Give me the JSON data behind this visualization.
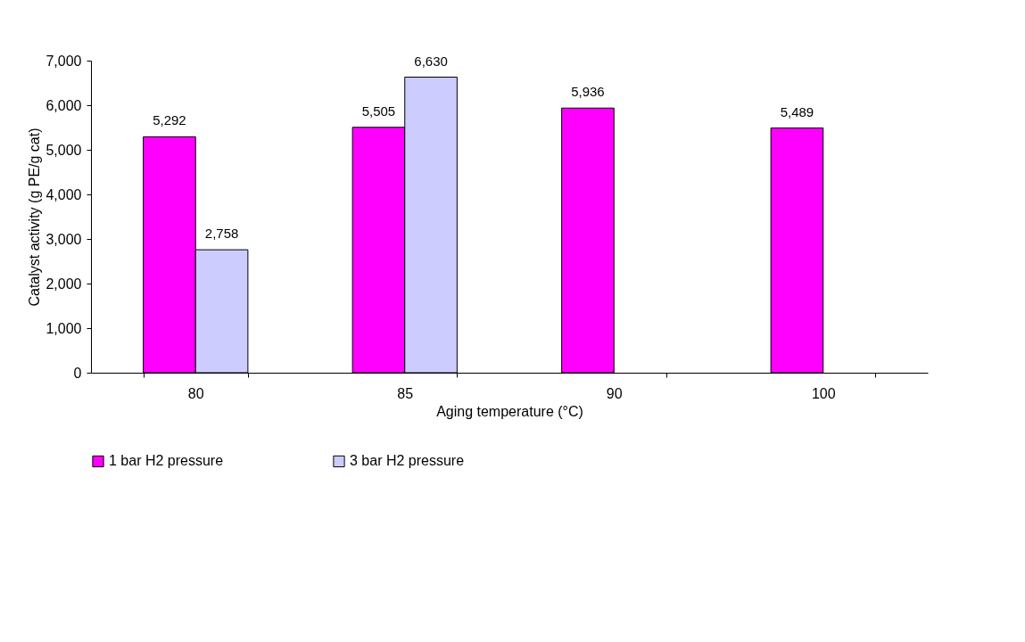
{
  "chart_data": {
    "type": "bar",
    "xlabel": "Aging temperature (°C)",
    "ylabel": "Catalyst activity (g PE/g cat)",
    "categories": [
      "80",
      "85",
      "90",
      "100"
    ],
    "series": [
      {
        "name": "1 bar H2 pressure",
        "color": "#ff00ff",
        "values": [
          5292,
          5505,
          5936,
          5489
        ],
        "value_labels": [
          "5,292",
          "5,505",
          "5,936",
          "5,489"
        ]
      },
      {
        "name": "3 bar H2 pressure",
        "color": "#ccccff",
        "values": [
          2758,
          6630,
          null,
          null
        ],
        "value_labels": [
          "2,758",
          "6,630",
          null,
          null
        ]
      }
    ],
    "ylim": [
      0,
      7000
    ],
    "yticks": [
      0,
      {
        "value": 1000,
        "label": "1,000"
      },
      {
        "value": 2000,
        "label": "2,000"
      },
      {
        "value": 3000,
        "label": "3,000"
      },
      {
        "value": 4000,
        "label": "4,000"
      },
      {
        "value": 5000,
        "label": "5,000"
      },
      {
        "value": 6000,
        "label": "6,000"
      },
      {
        "value": 7000,
        "label": "7,000"
      }
    ],
    "grid": false,
    "legend": "bottom"
  }
}
